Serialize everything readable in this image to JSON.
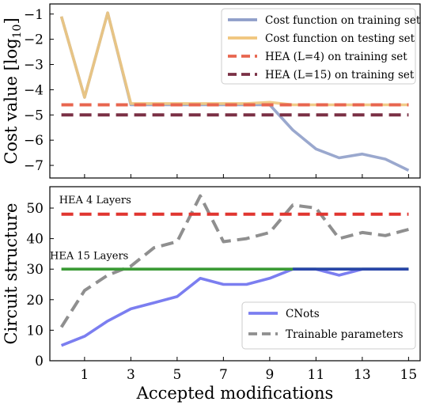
{
  "chart_data": [
    {
      "type": "line",
      "ylabel": "Cost value [log$_{10}$]",
      "ylabel_display": "Cost value [log",
      "ylabel_sub": "10",
      "ylabel_close": "]",
      "xlim": [
        -0.5,
        15.5
      ],
      "ylim": [
        -7.5,
        -0.6
      ],
      "yticks": [
        -1,
        -2,
        -3,
        -4,
        -5,
        -6,
        -7
      ],
      "ytick_labels": [
        "−1",
        "−2",
        "−3",
        "−4",
        "−5",
        "−6",
        "−7"
      ],
      "legend_position": "top-right",
      "series": [
        {
          "name": "Cost function on training set",
          "color": "#8f9ec9",
          "style": "solid",
          "x": [
            0,
            1,
            2,
            3,
            4,
            5,
            6,
            7,
            8,
            9,
            10,
            11,
            12,
            13,
            14,
            15
          ],
          "y": [
            -1.1,
            -4.3,
            -0.95,
            -4.6,
            -4.6,
            -4.6,
            -4.6,
            -4.6,
            -4.6,
            -4.6,
            -5.6,
            -6.35,
            -6.7,
            -6.55,
            -6.75,
            -7.2
          ]
        },
        {
          "name": "Cost function on testing set",
          "color": "#f0c67d",
          "style": "solid",
          "x": [
            0,
            1,
            2,
            3,
            4,
            5,
            6,
            7,
            8,
            9,
            10,
            11,
            12,
            13,
            14,
            15
          ],
          "y": [
            -1.1,
            -4.3,
            -0.95,
            -4.55,
            -4.55,
            -4.55,
            -4.55,
            -4.55,
            -4.55,
            -4.5,
            -4.6,
            -4.6,
            -4.6,
            -4.6,
            -4.6,
            -4.6
          ]
        },
        {
          "name": "HEA (L=4) on training set",
          "color": "#e8664f",
          "style": "dashed",
          "x": [
            0,
            15
          ],
          "y": [
            -4.6,
            -4.6
          ]
        },
        {
          "name": "HEA (L=15) on training set",
          "color": "#7a3045",
          "style": "dashed",
          "x": [
            0,
            15
          ],
          "y": [
            -5.0,
            -5.0
          ]
        }
      ]
    },
    {
      "type": "line",
      "ylabel": "Circuit structure",
      "xlabel": "Accepted modifications",
      "xlim": [
        -0.5,
        15.5
      ],
      "ylim": [
        0,
        57
      ],
      "yticks": [
        0,
        10,
        20,
        30,
        40,
        50
      ],
      "ytick_labels": [
        "0",
        "10",
        "20",
        "30",
        "40",
        "50"
      ],
      "xticks": [
        1,
        3,
        5,
        7,
        9,
        11,
        13,
        15
      ],
      "xtick_labels": [
        "1",
        "3",
        "5",
        "7",
        "9",
        "11",
        "13",
        "15"
      ],
      "legend_position": "bottom-right",
      "series": [
        {
          "name": "CNots",
          "color": "#7b7ef0",
          "style": "solid",
          "x": [
            0,
            1,
            2,
            3,
            4,
            5,
            6,
            7,
            8,
            9,
            10,
            11,
            12,
            13,
            14,
            15
          ],
          "y": [
            5,
            8,
            13,
            17,
            19,
            21,
            27,
            25,
            25,
            27,
            30,
            30,
            28,
            30,
            30,
            30
          ]
        },
        {
          "name": "Trainable parameters",
          "color": "#8f8f8f",
          "style": "dashed",
          "x": [
            0,
            1,
            2,
            3,
            4,
            5,
            6,
            7,
            8,
            9,
            10,
            11,
            12,
            13,
            14,
            15
          ],
          "y": [
            11,
            23,
            28,
            31,
            37,
            39,
            54,
            39,
            40,
            42,
            51,
            50,
            40,
            42,
            41,
            43
          ]
        },
        {
          "color": "#e03530",
          "style": "dashed",
          "x": [
            0,
            15
          ],
          "y": [
            48,
            48
          ]
        },
        {
          "color": "#3a9a35",
          "style": "solid",
          "x": [
            0,
            15
          ],
          "y": [
            30,
            30
          ]
        },
        {
          "color": "#2845a8",
          "style": "solid",
          "x": [
            10,
            15
          ],
          "y": [
            30,
            30
          ]
        }
      ],
      "annotations": [
        {
          "text": "HEA 4 Layers",
          "x": -0.1,
          "y": 51.5
        },
        {
          "text": "HEA 15 Layers",
          "x": -0.5,
          "y": 33.3
        }
      ]
    }
  ]
}
